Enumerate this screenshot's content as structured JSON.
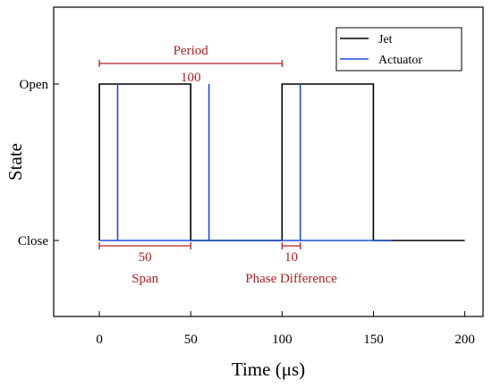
{
  "chart_data": {
    "type": "line",
    "xlabel": "Time (μs)",
    "ylabel": "State",
    "xlim": [
      -25,
      210
    ],
    "x_ticks": [
      0,
      50,
      100,
      150,
      200
    ],
    "y_categories": [
      "Close",
      "Open"
    ],
    "legend_position": "top-right",
    "series": [
      {
        "name": "Jet",
        "color": "#000000",
        "x": [
          0,
          0,
          50,
          50,
          100,
          100,
          150,
          150,
          200
        ],
        "y": [
          "Close",
          "Open",
          "Open",
          "Close",
          "Close",
          "Open",
          "Open",
          "Close",
          "Close"
        ]
      },
      {
        "name": "Actuator",
        "color": "#1f4fd6",
        "x": [
          0,
          10,
          10,
          10,
          60,
          60,
          60,
          110,
          110,
          110,
          160
        ],
        "y": [
          "Close",
          "Close",
          "Open",
          "Close",
          "Close",
          "Open",
          "Close",
          "Close",
          "Open",
          "Close",
          "Close"
        ]
      }
    ],
    "annotations": [
      {
        "label": "Period",
        "value": "100",
        "from": 0,
        "to": 100,
        "level": "top",
        "color": "#b02020"
      },
      {
        "label": "Span",
        "value": "50",
        "from": 0,
        "to": 50,
        "level": "bottom",
        "color": "#b02020"
      },
      {
        "label": "Phase Difference",
        "value": "10",
        "from": 100,
        "to": 110,
        "level": "bottom",
        "color": "#b02020"
      }
    ]
  }
}
